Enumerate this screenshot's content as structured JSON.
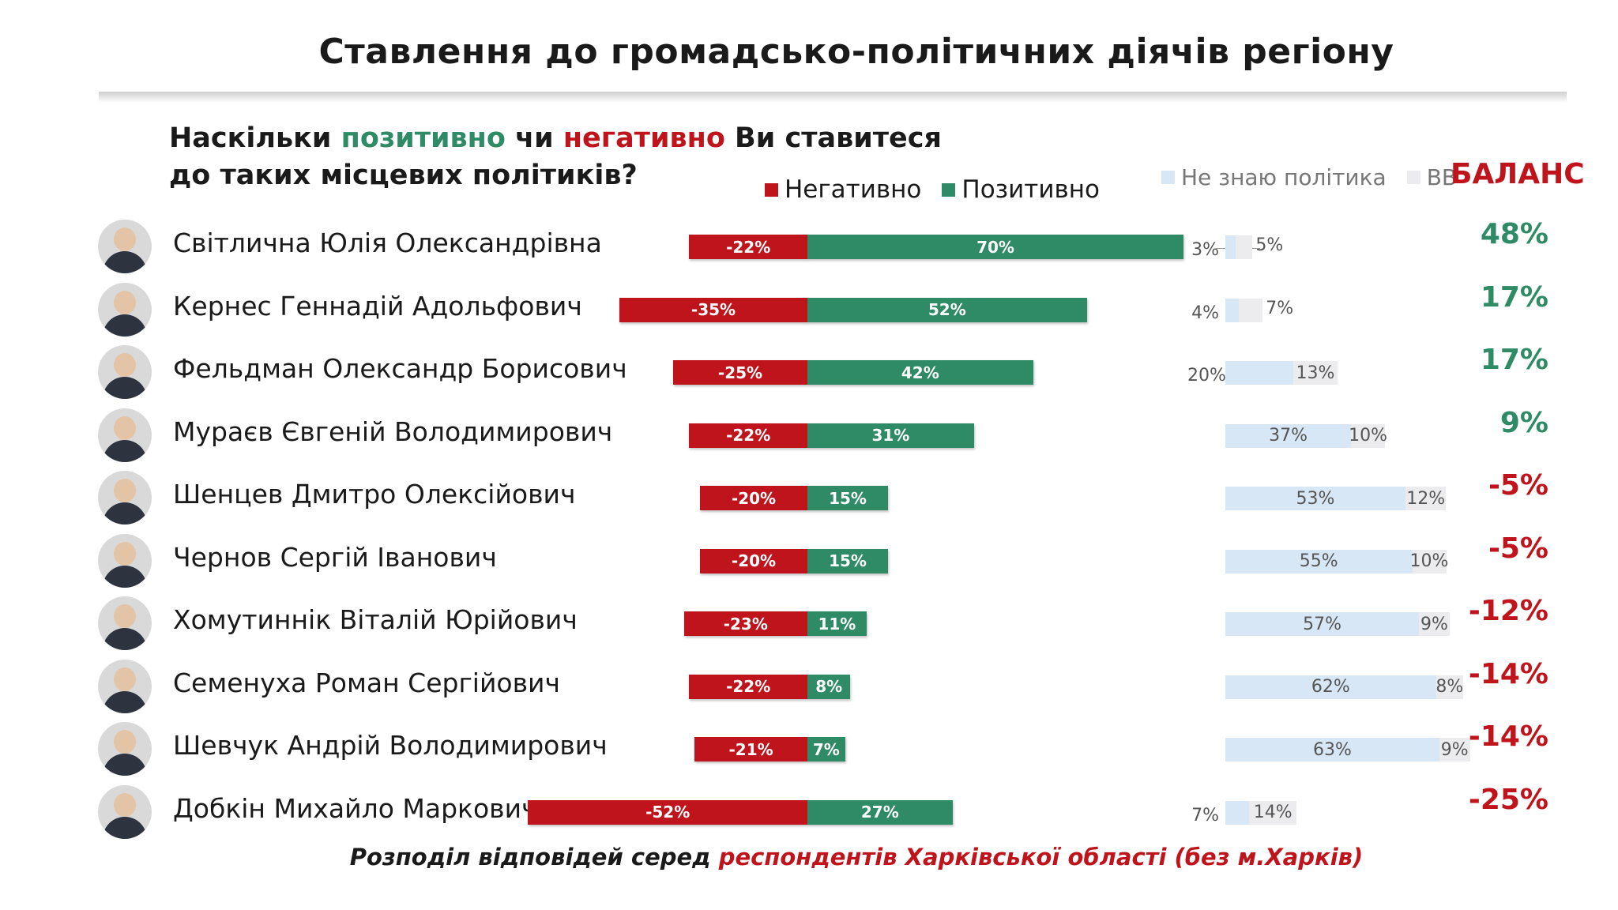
{
  "title": "Ставлення до громадсько-політичних діячів регіону",
  "question": {
    "p1": "Наскільки ",
    "positive": "позитивно",
    "p2": " чи ",
    "negative": "негативно",
    "p3": " Ви ставитеся",
    "line2": "до таких місцевих політиків?"
  },
  "legend": {
    "negative": "Негативно",
    "positive": "Позитивно",
    "dont_know": "Не знаю політика",
    "vv": "ВВ",
    "balance": "БАЛАНС"
  },
  "colors": {
    "negative": "#c0141c",
    "positive": "#2e8b66",
    "dont_know": "#d8e7f5",
    "vv": "#ececee"
  },
  "footer": {
    "p1": "Розподіл відповідей серед ",
    "p2": "респондентів Харківської області (без м.Харків)"
  },
  "chart_data": {
    "type": "bar",
    "categories": [
      "Світлична Юлія Олександрівна",
      "Кернес Геннадій Адольфович",
      "Фельдман Олександр Борисович",
      "Мураєв Євгеній Володимирович",
      "Шенцев Дмитро Олексійович",
      "Чернов Сергій Іванович",
      "Хомутиннік Віталій Юрійович",
      "Семенуха Роман Сергійович",
      "Шевчук Андрій Володимирович",
      "Добкін Михайло Маркович"
    ],
    "series": [
      {
        "name": "Негативно",
        "values": [
          -22,
          -35,
          -25,
          -22,
          -20,
          -20,
          -23,
          -22,
          -21,
          -52
        ]
      },
      {
        "name": "Позитивно",
        "values": [
          70,
          52,
          42,
          31,
          15,
          15,
          11,
          8,
          7,
          27
        ]
      },
      {
        "name": "Не знаю політика",
        "values": [
          3,
          4,
          20,
          37,
          53,
          55,
          57,
          62,
          63,
          7
        ]
      },
      {
        "name": "ВВ",
        "values": [
          5,
          7,
          13,
          10,
          12,
          10,
          9,
          8,
          9,
          14
        ]
      }
    ],
    "labels": {
      "negative": [
        "-22%",
        "-35%",
        "-25%",
        "-22%",
        "-20%",
        "-20%",
        "-23%",
        "-22%",
        "-21%",
        "-52%"
      ],
      "positive": [
        "70%",
        "52%",
        "42%",
        "31%",
        "15%",
        "15%",
        "11%",
        "8%",
        "7%",
        "27%"
      ],
      "dont_know": [
        "3%",
        "4%",
        "20%",
        "37%",
        "53%",
        "55%",
        "57%",
        "62%",
        "63%",
        "7%"
      ],
      "vv": [
        "5%",
        "7%",
        "13%",
        "10%",
        "12%",
        "10%",
        "9%",
        "8%",
        "9%",
        "14%"
      ],
      "balance": [
        "48%",
        "17%",
        "17%",
        "9%",
        "-5%",
        "-5%",
        "-12%",
        "-14%",
        "-14%",
        "-25%"
      ]
    },
    "balance": [
      48,
      17,
      17,
      9,
      -5,
      -5,
      -12,
      -14,
      -14,
      -25
    ]
  }
}
